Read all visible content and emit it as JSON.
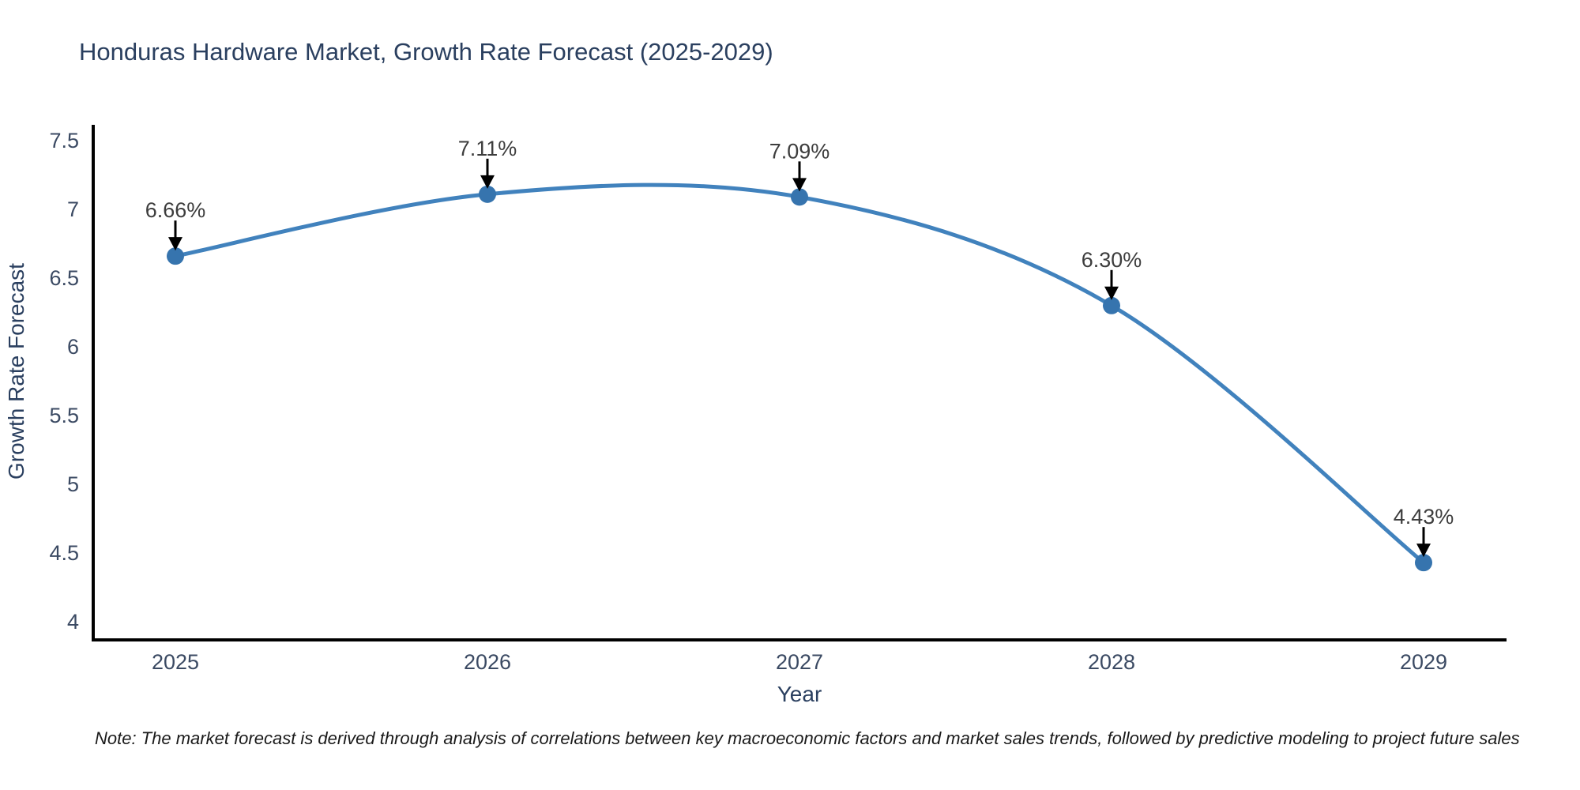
{
  "chart": {
    "title": "Honduras Hardware Market, Growth Rate Forecast (2025-2029)",
    "note": "Note: The market forecast is derived through analysis of correlations between key macroeconomic factors and market sales trends, followed by predictive modeling to project future sales"
  },
  "chart_data": {
    "type": "line",
    "line_shape": "spline",
    "title": "Honduras Hardware Market, Growth Rate Forecast (2025-2029)",
    "xlabel": "Year",
    "ylabel": "Growth Rate Forecast",
    "categories": [
      "2025",
      "2026",
      "2027",
      "2028",
      "2029"
    ],
    "values": [
      6.66,
      7.11,
      7.09,
      6.3,
      4.43
    ],
    "point_labels": [
      "6.66%",
      "7.11%",
      "7.09%",
      "6.30%",
      "4.43%"
    ],
    "annotation_style": "down-arrow",
    "ylim": [
      4,
      7.5
    ],
    "yticks": [
      7.5,
      7,
      6.5,
      6,
      5.5,
      5,
      4.5,
      4
    ],
    "grid": false,
    "legend": "none",
    "markers": true,
    "colors": {
      "line": "#4182bd",
      "marker": "#3674ae",
      "axis": "#000000",
      "arrow": "#000000",
      "title_text": "#2a3f5f",
      "tick_text": "#3b4a63",
      "annotation_text": "#3d3d3d",
      "note_text": "#1a1a1a",
      "background": "#ffffff"
    }
  }
}
